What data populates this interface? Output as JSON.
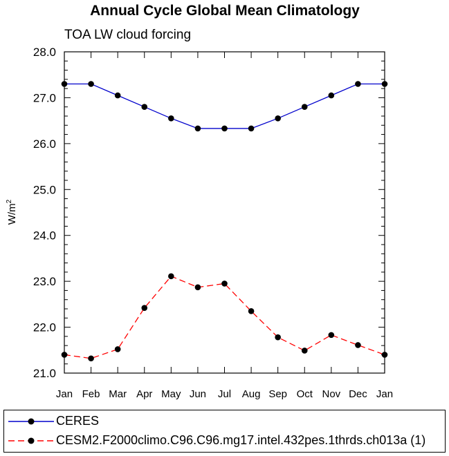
{
  "chart_data": {
    "type": "line",
    "title": "Annual Cycle Global Mean Climatology",
    "subtitle": "TOA LW cloud forcing",
    "xlabel": "",
    "ylabel_base": "W/m",
    "ylabel_sup": "2",
    "categories": [
      "Jan",
      "Feb",
      "Mar",
      "Apr",
      "May",
      "Jun",
      "Jul",
      "Aug",
      "Sep",
      "Oct",
      "Nov",
      "Dec",
      "Jan"
    ],
    "ylim": [
      21.0,
      28.0
    ],
    "yticks": [
      "21.0",
      "22.0",
      "23.0",
      "24.0",
      "25.0",
      "26.0",
      "27.0",
      "28.0"
    ],
    "series": [
      {
        "name": "CERES",
        "color": "#0000cc",
        "dashed": false,
        "values": [
          27.3,
          27.3,
          27.05,
          26.8,
          26.55,
          26.33,
          26.33,
          26.33,
          26.55,
          26.8,
          27.05,
          27.3,
          27.3
        ]
      },
      {
        "name": "CESM2.F2000climo.C96.C96.mg17.intel.432pes.1thrds.ch013a (1)",
        "color": "#ff0000",
        "dashed": true,
        "values": [
          21.4,
          21.32,
          21.52,
          22.42,
          23.11,
          22.87,
          22.95,
          22.35,
          21.78,
          21.49,
          21.83,
          21.61,
          21.4
        ]
      }
    ]
  }
}
